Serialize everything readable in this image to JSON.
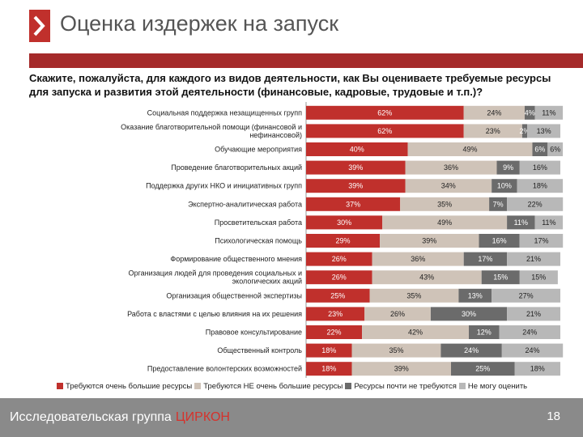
{
  "header": {
    "title": "Оценка издержек на запуск",
    "question": "Скажите, пожалуйста, для каждого из видов деятельности, как Вы оцениваете требуемые ресурсы для запуска и развития этой деятельности (финансовые, кадровые, трудовые и т.п.)?"
  },
  "colors": {
    "accent": "#c0302c",
    "title_bar": "#a52a2a",
    "footer": "#8a8a8a",
    "brand": "#d6322c"
  },
  "chart_data": {
    "type": "bar",
    "orientation": "horizontal",
    "stacked": true,
    "categories": [
      "Социальная поддержка незащищенных групп",
      "Оказание благотворительной помощи (финансовой и нефинансовой)",
      "Обучающие мероприятия",
      "Проведение благотворительных акций",
      "Поддержка других НКО и инициативных групп",
      "Экспертно-аналитическая работа",
      "Просветительская работа",
      "Психологическая помощь",
      "Формирование общественного мнения",
      "Организация людей для проведения социальных и экологических акций",
      "Организация общественной экспертизы",
      "Работа с властями с целью влияния на их решения",
      "Правовое консультирование",
      "Общественный контроль",
      "Предоставление волонтерских возможностей"
    ],
    "series": [
      {
        "name": "Требуются очень большие ресурсы",
        "color": "#c0302c",
        "values": [
          62,
          62,
          40,
          39,
          39,
          37,
          30,
          29,
          26,
          26,
          25,
          23,
          22,
          18,
          18
        ]
      },
      {
        "name": "Требуются НЕ очень большие ресурсы",
        "color": "#cfc3b8",
        "values": [
          24,
          23,
          49,
          36,
          34,
          35,
          49,
          39,
          36,
          43,
          35,
          26,
          42,
          35,
          39
        ]
      },
      {
        "name": "Ресурсы почти не требуются",
        "color": "#6b6b6b",
        "values": [
          4,
          2,
          6,
          9,
          10,
          7,
          11,
          16,
          17,
          15,
          13,
          30,
          12,
          24,
          25
        ]
      },
      {
        "name": "Не могу оценить",
        "color": "#b8b8b8",
        "values": [
          11,
          13,
          6,
          16,
          18,
          22,
          11,
          17,
          21,
          15,
          27,
          21,
          24,
          24,
          18
        ]
      }
    ],
    "unit": "%",
    "xlim": [
      0,
      100
    ],
    "legend_position": "bottom",
    "grid": false
  },
  "footer": {
    "org": "Исследовательская группа",
    "brand": "ЦИРКОН",
    "page": "18"
  }
}
